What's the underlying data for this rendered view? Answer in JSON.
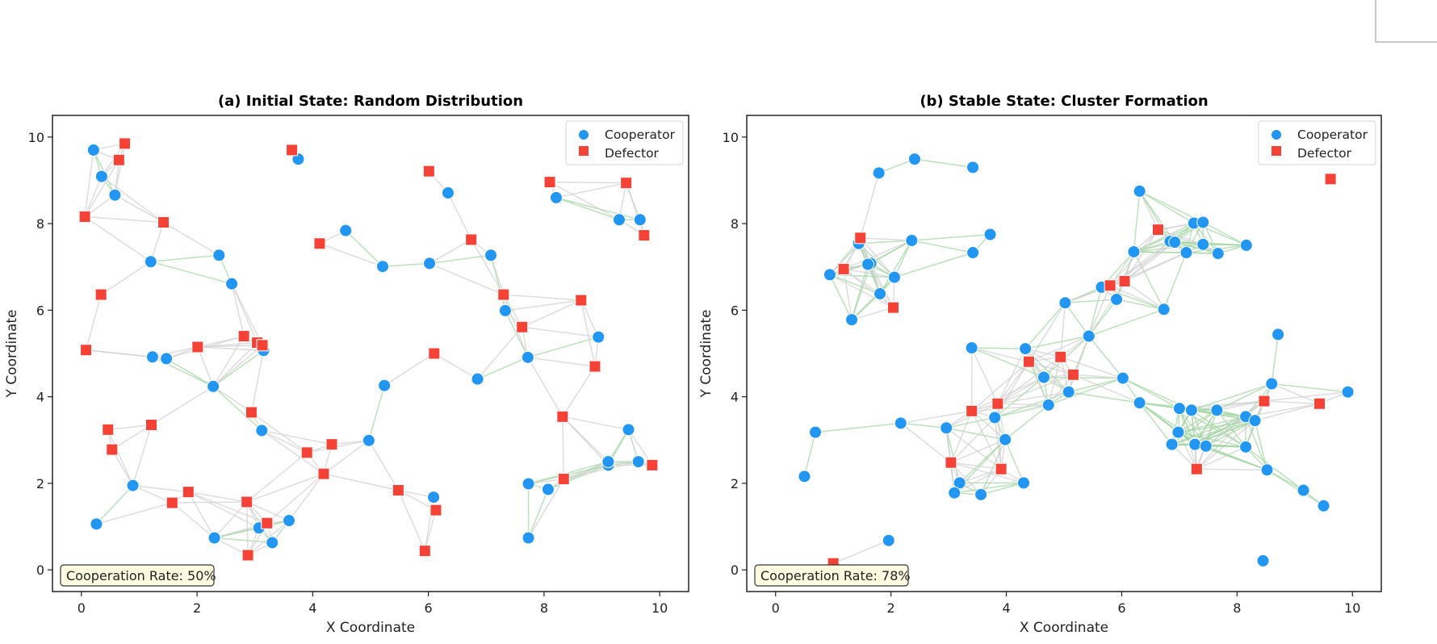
{
  "chart_data": [
    {
      "type": "scatter",
      "title": "(a) Initial State: Random Distribution",
      "xlabel": "X Coordinate",
      "ylabel": "Y Coordinate",
      "xlim": [
        -0.5,
        10.5
      ],
      "ylim": [
        -0.5,
        10.5
      ],
      "xticks": [
        "0",
        "2",
        "4",
        "6",
        "8",
        "10"
      ],
      "yticks": [
        "0",
        "2",
        "4",
        "6",
        "8",
        "10"
      ],
      "grid": false,
      "legend": {
        "placement": "top-right",
        "entries": [
          "Cooperator",
          "Defector"
        ]
      },
      "annotation": "Cooperation Rate: 50%",
      "series": [
        {
          "name": "Cooperator",
          "color": "#2196F3",
          "marker": "circle",
          "points": [
            [
              0.21,
              9.7
            ],
            [
              0.35,
              9.09
            ],
            [
              0.58,
              8.66
            ],
            [
              1.2,
              7.12
            ],
            [
              2.38,
              7.27
            ],
            [
              2.6,
              6.61
            ],
            [
              1.23,
              4.92
            ],
            [
              1.47,
              4.88
            ],
            [
              3.15,
              5.07
            ],
            [
              2.28,
              4.24
            ],
            [
              3.12,
              3.22
            ],
            [
              4.97,
              2.99
            ],
            [
              0.89,
              1.95
            ],
            [
              0.26,
              1.06
            ],
            [
              2.3,
              0.74
            ],
            [
              3.07,
              0.97
            ],
            [
              3.3,
              0.63
            ],
            [
              3.59,
              1.14
            ],
            [
              3.75,
              9.49
            ],
            [
              4.57,
              7.84
            ],
            [
              5.21,
              7.01
            ],
            [
              6.02,
              7.08
            ],
            [
              7.08,
              7.27
            ],
            [
              6.34,
              8.71
            ],
            [
              8.21,
              8.6
            ],
            [
              9.3,
              8.09
            ],
            [
              9.66,
              8.09
            ],
            [
              7.33,
              5.99
            ],
            [
              7.72,
              4.91
            ],
            [
              6.85,
              4.41
            ],
            [
              5.24,
              4.26
            ],
            [
              8.94,
              5.38
            ],
            [
              6.09,
              1.68
            ],
            [
              7.73,
              0.74
            ],
            [
              8.07,
              1.86
            ],
            [
              7.73,
              1.99
            ],
            [
              9.11,
              2.42
            ],
            [
              9.46,
              3.24
            ],
            [
              9.11,
              2.5
            ],
            [
              9.63,
              2.5
            ]
          ]
        },
        {
          "name": "Defector",
          "color": "#F44336",
          "marker": "square",
          "points": [
            [
              0.75,
              9.85
            ],
            [
              0.65,
              9.47
            ],
            [
              0.06,
              8.16
            ],
            [
              1.42,
              8.03
            ],
            [
              0.34,
              6.36
            ],
            [
              3.64,
              9.7
            ],
            [
              0.08,
              5.08
            ],
            [
              2.01,
              5.15
            ],
            [
              2.81,
              5.4
            ],
            [
              3.04,
              5.25
            ],
            [
              3.13,
              5.19
            ],
            [
              2.94,
              3.64
            ],
            [
              0.46,
              3.24
            ],
            [
              0.53,
              2.78
            ],
            [
              1.21,
              3.35
            ],
            [
              3.9,
              2.71
            ],
            [
              4.33,
              2.9
            ],
            [
              4.19,
              2.22
            ],
            [
              5.48,
              1.84
            ],
            [
              1.57,
              1.55
            ],
            [
              1.85,
              1.8
            ],
            [
              2.86,
              1.57
            ],
            [
              3.21,
              1.08
            ],
            [
              2.88,
              0.34
            ],
            [
              6.01,
              9.21
            ],
            [
              4.12,
              7.54
            ],
            [
              6.74,
              7.63
            ],
            [
              7.3,
              6.36
            ],
            [
              7.62,
              5.61
            ],
            [
              8.64,
              6.23
            ],
            [
              8.88,
              4.7
            ],
            [
              6.1,
              5.0
            ],
            [
              8.1,
              8.96
            ],
            [
              9.42,
              8.94
            ],
            [
              9.73,
              7.73
            ],
            [
              8.32,
              3.54
            ],
            [
              8.34,
              2.1
            ],
            [
              9.87,
              2.42
            ],
            [
              5.94,
              0.44
            ],
            [
              6.13,
              1.38
            ]
          ]
        }
      ]
    },
    {
      "type": "scatter",
      "title": "(b) Stable State: Cluster Formation",
      "xlabel": "X Coordinate",
      "ylabel": "Y Coordinate",
      "xlim": [
        -0.5,
        10.5
      ],
      "ylim": [
        -0.5,
        10.5
      ],
      "xticks": [
        "0",
        "2",
        "4",
        "6",
        "8",
        "10"
      ],
      "yticks": [
        "0",
        "2",
        "4",
        "6",
        "8",
        "10"
      ],
      "grid": false,
      "legend": {
        "placement": "top-right",
        "entries": [
          "Cooperator",
          "Defector"
        ]
      },
      "annotation": "Cooperation Rate: 78%",
      "series": [
        {
          "name": "Cooperator",
          "color": "#2196F3",
          "marker": "circle",
          "points": [
            [
              1.79,
              9.17
            ],
            [
              2.41,
              9.49
            ],
            [
              3.42,
              9.3
            ],
            [
              1.44,
              7.54
            ],
            [
              1.65,
              7.08
            ],
            [
              1.6,
              7.06
            ],
            [
              2.06,
              6.76
            ],
            [
              1.81,
              6.38
            ],
            [
              0.94,
              6.82
            ],
            [
              1.32,
              5.78
            ],
            [
              2.36,
              7.61
            ],
            [
              3.72,
              7.75
            ],
            [
              3.42,
              7.33
            ],
            [
              6.31,
              8.75
            ],
            [
              6.21,
              7.35
            ],
            [
              6.84,
              7.59
            ],
            [
              6.92,
              7.57
            ],
            [
              7.25,
              8.01
            ],
            [
              7.41,
              8.03
            ],
            [
              7.12,
              7.33
            ],
            [
              7.41,
              7.52
            ],
            [
              7.67,
              7.31
            ],
            [
              8.16,
              7.5
            ],
            [
              6.73,
              6.02
            ],
            [
              5.65,
              6.53
            ],
            [
              5.91,
              6.25
            ],
            [
              5.02,
              6.17
            ],
            [
              5.43,
              5.4
            ],
            [
              3.4,
              5.13
            ],
            [
              4.33,
              5.11
            ],
            [
              4.65,
              4.45
            ],
            [
              5.08,
              4.11
            ],
            [
              6.02,
              4.43
            ],
            [
              4.73,
              3.81
            ],
            [
              2.96,
              3.28
            ],
            [
              2.17,
              3.39
            ],
            [
              3.8,
              3.52
            ],
            [
              3.98,
              3.01
            ],
            [
              3.19,
              2.01
            ],
            [
              3.1,
              1.78
            ],
            [
              3.56,
              1.74
            ],
            [
              4.3,
              2.01
            ],
            [
              6.31,
              3.86
            ],
            [
              7.0,
              3.73
            ],
            [
              7.21,
              3.69
            ],
            [
              7.65,
              3.69
            ],
            [
              6.98,
              3.18
            ],
            [
              7.27,
              2.92
            ],
            [
              8.15,
              3.54
            ],
            [
              8.31,
              3.45
            ],
            [
              8.6,
              4.3
            ],
            [
              8.71,
              5.44
            ],
            [
              8.15,
              2.84
            ],
            [
              8.52,
              2.31
            ],
            [
              9.15,
              1.84
            ],
            [
              9.5,
              1.48
            ],
            [
              9.92,
              4.11
            ],
            [
              7.27,
              2.9
            ],
            [
              6.87,
              2.9
            ],
            [
              0.69,
              3.18
            ],
            [
              0.5,
              2.16
            ],
            [
              1.96,
              0.68
            ],
            [
              8.45,
              0.21
            ],
            [
              7.46,
              2.86
            ]
          ]
        },
        {
          "name": "Defector",
          "color": "#F44336",
          "marker": "square",
          "points": [
            [
              1.47,
              7.67
            ],
            [
              1.18,
              6.95
            ],
            [
              2.04,
              6.06
            ],
            [
              6.63,
              7.86
            ],
            [
              5.8,
              6.57
            ],
            [
              6.05,
              6.67
            ],
            [
              4.94,
              4.92
            ],
            [
              4.39,
              4.81
            ],
            [
              5.16,
              4.51
            ],
            [
              3.4,
              3.67
            ],
            [
              3.85,
              3.84
            ],
            [
              3.04,
              2.48
            ],
            [
              3.91,
              2.33
            ],
            [
              7.3,
              2.33
            ],
            [
              8.47,
              3.9
            ],
            [
              9.43,
              3.84
            ],
            [
              9.62,
              9.03
            ],
            [
              1.0,
              0.15
            ]
          ]
        }
      ]
    }
  ]
}
